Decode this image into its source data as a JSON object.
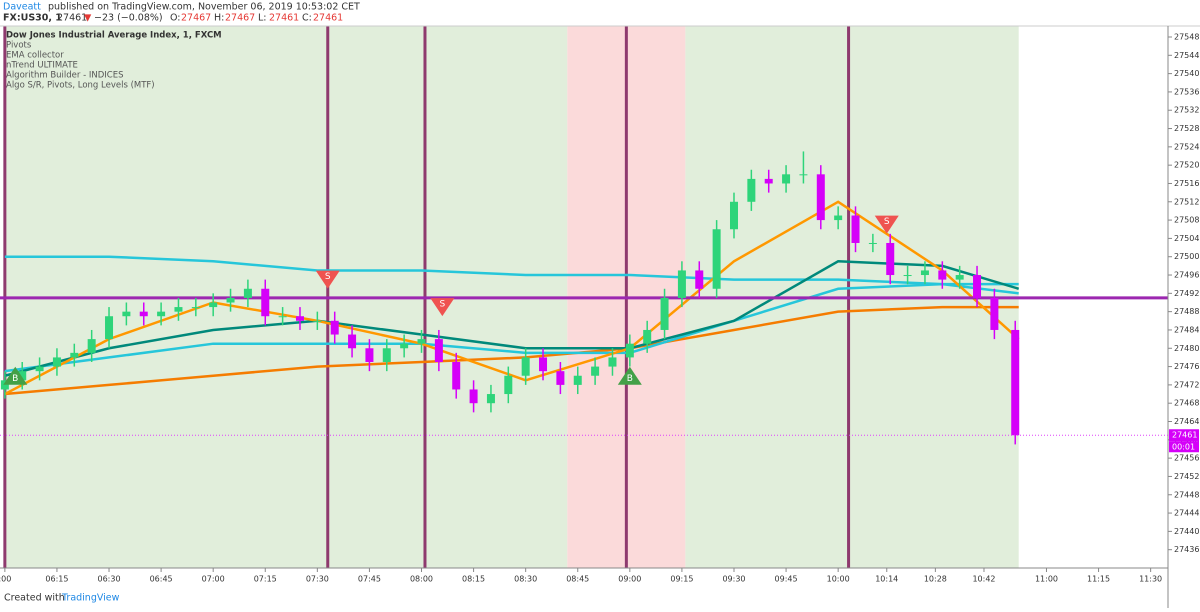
{
  "header": {
    "author": "Daveatt",
    "published": "published on TradingView.com, November 06, 2019 10:53:02 CET",
    "symbol": "FX:US30, 1",
    "last": "27461",
    "arrow": "▼",
    "change": "−23 (−0.08%)",
    "ohlc": [
      {
        "label": "O:",
        "value": "27467"
      },
      {
        "label": "H:",
        "value": "27467"
      },
      {
        "label": "L:",
        "value": "27461"
      },
      {
        "label": "C:",
        "value": "27461"
      }
    ]
  },
  "chart_data": {
    "type": "candlestick",
    "title": "Dow Jones Industrial Average Index, 1, FXCM",
    "indicators": [
      "Pivots",
      "EMA collector",
      "nTrend ULTIMATE",
      "Algorithm Builder - INDICES",
      "Algo S/R, Pivots, Long Levels (MTF)"
    ],
    "x": [
      0,
      5,
      10,
      15,
      20,
      25,
      30,
      35,
      40,
      45,
      50,
      55,
      60,
      65,
      70,
      75,
      80,
      85,
      90,
      95,
      100,
      105,
      110,
      115,
      120,
      125,
      130,
      135,
      140,
      145,
      150,
      155,
      160,
      165,
      170,
      175,
      180,
      185,
      190,
      195,
      200,
      205,
      210,
      215,
      220,
      225,
      230,
      235,
      240,
      245,
      250,
      255,
      260,
      265,
      270,
      275,
      280,
      285,
      291
    ],
    "open": [
      27471,
      27473,
      27475,
      27476,
      27478,
      27479,
      27482,
      27487,
      27488,
      27487,
      27488,
      27489,
      27489,
      27490,
      27491,
      27493,
      27487,
      27487,
      27486,
      27486,
      27483,
      27480,
      27477,
      27480,
      27481,
      27482,
      27477,
      27471,
      27468,
      27470,
      27474,
      27478,
      27475,
      27472,
      27474,
      27476,
      27478,
      27481,
      27484,
      27491,
      27497,
      27493,
      27506,
      27512,
      27517,
      27516,
      27518,
      27518,
      27508,
      27509,
      27503,
      27503,
      27496,
      27496,
      27497,
      27495,
      27496,
      27491,
      27484
    ],
    "high": [
      27475,
      27477,
      27478,
      27480,
      27481,
      27484,
      27489,
      27490,
      27490,
      27490,
      27491,
      27491,
      27492,
      27493,
      27495,
      27495,
      27489,
      27489,
      27488,
      27488,
      27485,
      27482,
      27482,
      27483,
      27484,
      27484,
      27479,
      27473,
      27472,
      27476,
      27480,
      27480,
      27477,
      27476,
      27478,
      27480,
      27483,
      27486,
      27493,
      27499,
      27499,
      27508,
      27514,
      27519,
      27519,
      27520,
      27523,
      27520,
      27511,
      27511,
      27505,
      27505,
      27498,
      27499,
      27499,
      27498,
      27498,
      27493,
      27486
    ],
    "low": [
      27469,
      27471,
      27473,
      27474,
      27476,
      27477,
      27480,
      27485,
      27485,
      27485,
      27486,
      27487,
      27487,
      27488,
      27489,
      27485,
      27485,
      27484,
      27484,
      27481,
      27478,
      27475,
      27475,
      27478,
      27479,
      27475,
      27469,
      27466,
      27466,
      27468,
      27472,
      27473,
      27470,
      27470,
      27472,
      27474,
      27476,
      27479,
      27482,
      27489,
      27491,
      27491,
      27504,
      27510,
      27514,
      27514,
      27516,
      27506,
      27506,
      27501,
      27501,
      27494,
      27494,
      27494,
      27493,
      27493,
      27489,
      27482,
      27459
    ],
    "close": [
      27473,
      27475,
      27476,
      27478,
      27479,
      27482,
      27487,
      27488,
      27487,
      27488,
      27489,
      27489,
      27490,
      27491,
      27493,
      27487,
      27487,
      27486,
      27486,
      27483,
      27480,
      27477,
      27480,
      27481,
      27482,
      27477,
      27471,
      27468,
      27470,
      27474,
      27478,
      27475,
      27472,
      27474,
      27476,
      27478,
      27481,
      27484,
      27491,
      27497,
      27493,
      27506,
      27512,
      27517,
      27516,
      27518,
      27518,
      27508,
      27509,
      27503,
      27503,
      27496,
      27496,
      27497,
      27495,
      27496,
      27491,
      27484,
      27461
    ],
    "up_color": "#2ed47a",
    "down_color": "#d500f9",
    "overlays": {
      "x": [
        0,
        30,
        60,
        90,
        120,
        150,
        180,
        210,
        240,
        270,
        292
      ],
      "series": [
        {
          "color": "#26c6da",
          "values": [
            27500,
            27500,
            27499,
            27497,
            27497,
            27496,
            27496,
            27495,
            27495,
            27494,
            27494
          ]
        },
        {
          "color": "#f57c00",
          "values": [
            27470,
            27472,
            27474,
            27476,
            27477,
            27478,
            27480,
            27484,
            27488,
            27489,
            27489
          ]
        },
        {
          "color": "#26c6da",
          "values": [
            27475,
            27478,
            27481,
            27481,
            27481,
            27479,
            27479,
            27486,
            27493,
            27494,
            27492
          ]
        },
        {
          "color": "#00897b",
          "values": [
            27474,
            27480,
            27484,
            27486,
            27483,
            27480,
            27480,
            27486,
            27499,
            27498,
            27493
          ]
        },
        {
          "color": "#ff9800",
          "values": [
            27470,
            27482,
            27490,
            27486,
            27481,
            27473,
            27480,
            27499,
            27512,
            27497,
            27482
          ]
        }
      ]
    },
    "hline": {
      "value": 27491,
      "color": "#9c27b0"
    },
    "sessions": [
      {
        "from": 0,
        "to": 162,
        "color": "#e1eedb"
      },
      {
        "from": 162,
        "to": 196,
        "color": "#fbdada"
      },
      {
        "from": 196,
        "to": 292,
        "color": "#e1eedb"
      }
    ],
    "vlines": [
      0,
      93,
      121,
      179,
      243
    ],
    "markers": [
      {
        "x": 3,
        "y": 27474,
        "text": "B",
        "color": "#43a047"
      },
      {
        "x": 93,
        "y": 27495,
        "text": "S",
        "color": "#ef5350"
      },
      {
        "x": 126,
        "y": 27489,
        "text": "S",
        "color": "#ef5350"
      },
      {
        "x": 180,
        "y": 27474,
        "text": "B",
        "color": "#43a047"
      },
      {
        "x": 254,
        "y": 27507,
        "text": "S",
        "color": "#ef5350"
      }
    ],
    "countdown": "00:01",
    "xlim": [
      -1.4,
      335
    ],
    "ylim": [
      27432,
      27550.4
    ],
    "xticks": [
      {
        "value": 0,
        "label": ":00"
      },
      {
        "value": 15,
        "label": "06:15"
      },
      {
        "value": 30,
        "label": "06:30"
      },
      {
        "value": 45,
        "label": "06:45"
      },
      {
        "value": 60,
        "label": "07:00"
      },
      {
        "value": 75,
        "label": "07:15"
      },
      {
        "value": 90,
        "label": "07:30"
      },
      {
        "value": 105,
        "label": "07:45"
      },
      {
        "value": 120,
        "label": "08:00"
      },
      {
        "value": 135,
        "label": "08:15"
      },
      {
        "value": 150,
        "label": "08:30"
      },
      {
        "value": 165,
        "label": "08:45"
      },
      {
        "value": 180,
        "label": "09:00"
      },
      {
        "value": 195,
        "label": "09:15"
      },
      {
        "value": 210,
        "label": "09:30"
      },
      {
        "value": 225,
        "label": "09:45"
      },
      {
        "value": 240,
        "label": "10:00"
      },
      {
        "value": 254,
        "label": "10:14"
      },
      {
        "value": 268,
        "label": "10:28"
      },
      {
        "value": 282,
        "label": "10:42"
      },
      {
        "value": 300,
        "label": "11:00"
      },
      {
        "value": 315,
        "label": "11:15"
      },
      {
        "value": 330,
        "label": "11:30"
      }
    ],
    "yticks": [
      27436,
      27440,
      27444,
      27448,
      27452,
      27456,
      27460,
      27464,
      27468,
      27472,
      27476,
      27480,
      27484,
      27488,
      27492,
      27496,
      27500,
      27504,
      27508,
      27512,
      27516,
      27520,
      27524,
      27528,
      27532,
      27536,
      27540,
      27544,
      27548
    ]
  },
  "footer": {
    "created": "Created with",
    "brand": "TradingView"
  }
}
